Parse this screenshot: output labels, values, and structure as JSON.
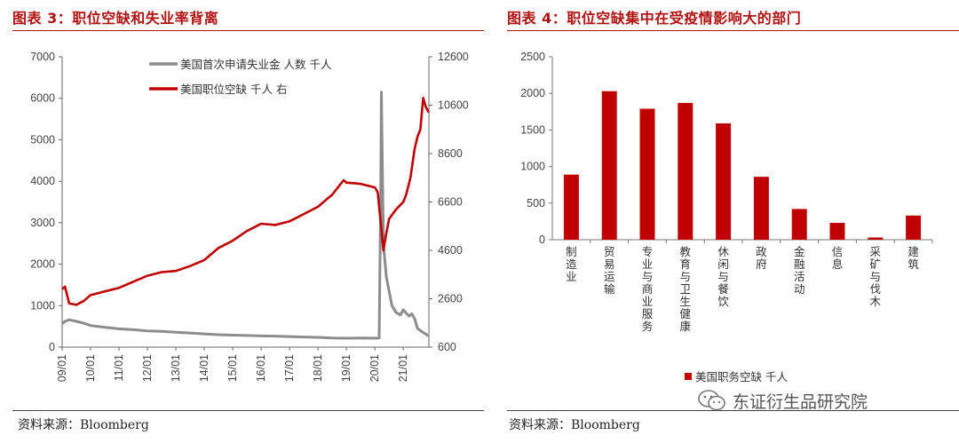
{
  "left": {
    "title": "图表 3：职位空缺和失业率背离",
    "source": "资料来源：Bloomberg"
  },
  "right": {
    "title": "图表 4：职位空缺集中在受疫情影响大的部门",
    "source": "资料来源：Bloomberg"
  },
  "watermark": {
    "text": "东证衍生品研究院",
    "icon": "wechat-icon"
  },
  "colors": {
    "red": "#c00000",
    "gray": "#8c8c8c",
    "title_red": "#b01212"
  },
  "chart_data": [
    {
      "type": "line",
      "legend_position": "top-center",
      "grid": false,
      "x_ticks": [
        "09/01",
        "10/01",
        "11/01",
        "12/01",
        "13/01",
        "14/01",
        "15/01",
        "16/01",
        "17/01",
        "18/01",
        "19/01",
        "20/01",
        "21/01"
      ],
      "x_range": [
        2009.0,
        2021.9
      ],
      "y_left": {
        "lim": [
          0,
          7000
        ],
        "ticks": [
          0,
          1000,
          2000,
          3000,
          4000,
          5000,
          6000,
          7000
        ]
      },
      "y_right": {
        "lim": [
          600,
          12600
        ],
        "ticks": [
          600,
          2600,
          4600,
          6600,
          8600,
          10600,
          12600
        ]
      },
      "series": [
        {
          "name": "美国首次申请失业金 人数 千人",
          "axis": "left",
          "color": "#8c8c8c",
          "x": [
            2009.0,
            2009.1,
            2009.25,
            2009.5,
            2009.75,
            2010.0,
            2010.5,
            2011.0,
            2011.5,
            2012.0,
            2012.5,
            2013.0,
            2013.5,
            2014.0,
            2014.5,
            2015.0,
            2015.5,
            2016.0,
            2016.5,
            2017.0,
            2017.5,
            2018.0,
            2018.5,
            2019.0,
            2019.5,
            2020.0,
            2020.15,
            2020.2,
            2020.23,
            2020.26,
            2020.3,
            2020.4,
            2020.5,
            2020.6,
            2020.75,
            2020.9,
            2021.0,
            2021.1,
            2021.2,
            2021.3,
            2021.4,
            2021.5,
            2021.6,
            2021.75,
            2021.9
          ],
          "values": [
            560,
            620,
            660,
            620,
            580,
            520,
            480,
            440,
            420,
            390,
            380,
            360,
            340,
            320,
            300,
            290,
            280,
            270,
            265,
            255,
            245,
            235,
            220,
            215,
            220,
            215,
            220,
            3300,
            6150,
            4500,
            2500,
            1700,
            1350,
            1000,
            830,
            780,
            900,
            820,
            750,
            800,
            680,
            450,
            400,
            330,
            270
          ]
        },
        {
          "name": "美国职位空缺 千人 右",
          "axis": "right",
          "color": "#c00000",
          "x": [
            2009.0,
            2009.1,
            2009.25,
            2009.5,
            2009.75,
            2010.0,
            2010.5,
            2011.0,
            2011.5,
            2012.0,
            2012.5,
            2013.0,
            2013.5,
            2014.0,
            2014.5,
            2015.0,
            2015.5,
            2016.0,
            2016.5,
            2017.0,
            2017.5,
            2018.0,
            2018.5,
            2018.9,
            2019.0,
            2019.5,
            2020.0,
            2020.1,
            2020.2,
            2020.3,
            2020.4,
            2020.5,
            2020.75,
            2021.0,
            2021.1,
            2021.25,
            2021.4,
            2021.5,
            2021.6,
            2021.7,
            2021.8,
            2021.9
          ],
          "values": [
            3000,
            3100,
            2400,
            2350,
            2500,
            2750,
            2900,
            3050,
            3300,
            3550,
            3700,
            3750,
            3950,
            4200,
            4700,
            5000,
            5400,
            5700,
            5650,
            5800,
            6100,
            6400,
            6900,
            7500,
            7400,
            7350,
            7200,
            7000,
            5800,
            4600,
            5300,
            5900,
            6300,
            6600,
            6900,
            7600,
            8800,
            9300,
            9600,
            10900,
            10500,
            10300
          ]
        }
      ]
    },
    {
      "type": "bar",
      "legend_position": "bottom",
      "grid": false,
      "ylim": [
        0,
        2500
      ],
      "y_ticks": [
        0,
        500,
        1000,
        1500,
        2000,
        2500
      ],
      "categories": [
        "制造业",
        "贸易运输",
        "专业与商业服务",
        "教育与卫生健康",
        "休闲与餐饮",
        "政府",
        "金融活动",
        "信息",
        "采矿与伐木",
        "建筑"
      ],
      "series": [
        {
          "name": "美国职务空缺 千人",
          "color": "#c00000",
          "values": [
            890,
            2030,
            1790,
            1870,
            1590,
            860,
            420,
            230,
            30,
            330
          ]
        }
      ]
    }
  ]
}
